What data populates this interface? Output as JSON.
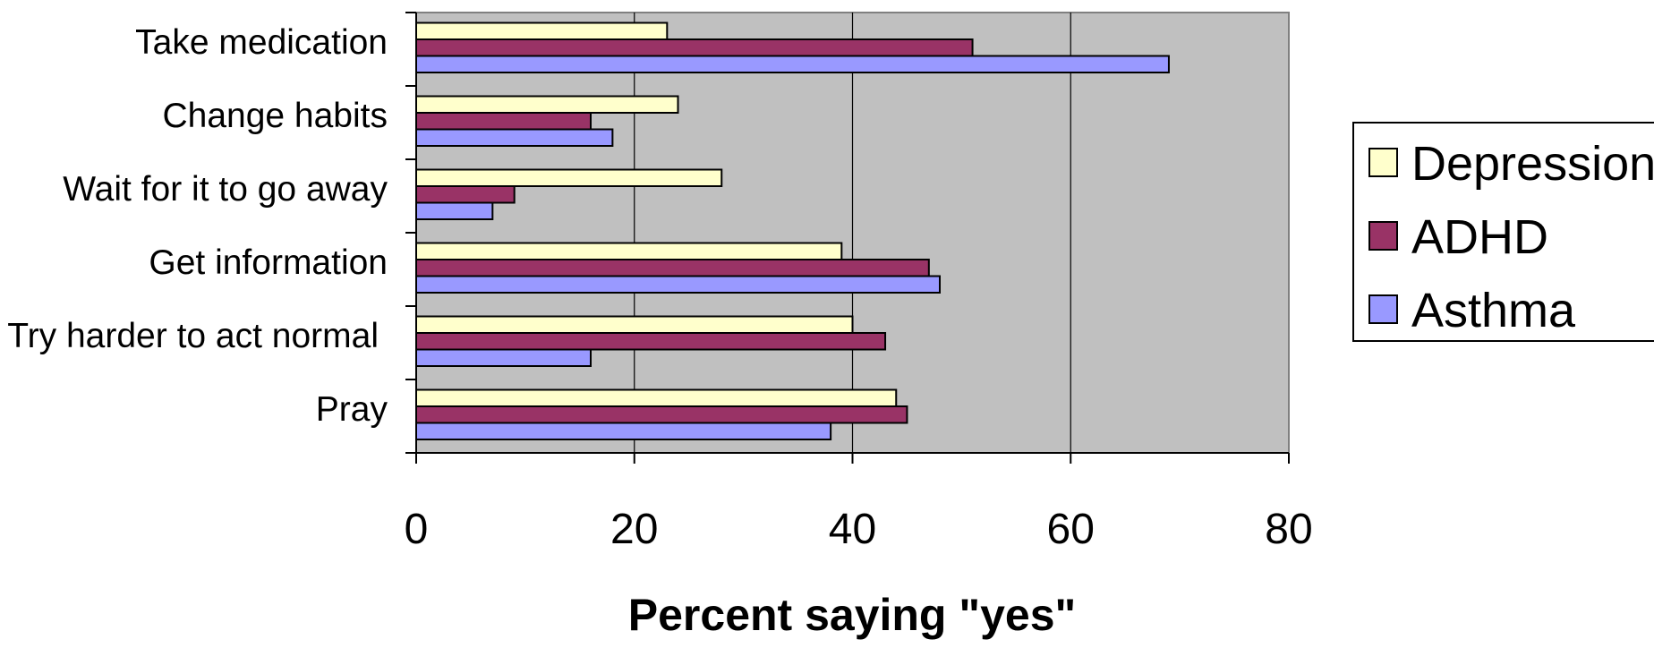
{
  "chart_data": {
    "type": "bar",
    "orientation": "horizontal",
    "title": "",
    "xlabel": "Percent saying \"yes\"",
    "ylabel": "",
    "xlim": [
      0,
      80
    ],
    "x_ticks": [
      0,
      20,
      40,
      60,
      80
    ],
    "grid": "vertical",
    "legend_position": "right",
    "categories": [
      "Take medication",
      "Change habits",
      "Wait for it to go away",
      "Get information",
      "Try harder to act normal",
      "Pray"
    ],
    "series": [
      {
        "name": "Depression",
        "color": "#ffffcc",
        "values": [
          23,
          24,
          28,
          39,
          40,
          44
        ]
      },
      {
        "name": "ADHD",
        "color": "#993366",
        "values": [
          51,
          16,
          9,
          47,
          43,
          45
        ]
      },
      {
        "name": "Asthma",
        "color": "#9999ff",
        "values": [
          69,
          18,
          7,
          48,
          16,
          38
        ]
      }
    ],
    "plot_background": "#c0c0c0"
  }
}
